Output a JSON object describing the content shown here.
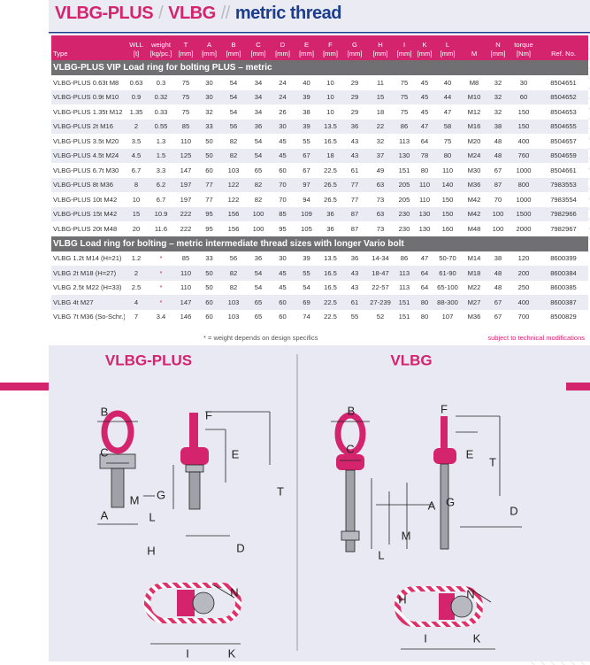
{
  "title": {
    "part1": "VLBG-PLUS",
    "part2": "VLBG",
    "part3": "metric thread"
  },
  "table": {
    "columns": [
      {
        "name": "Type"
      },
      {
        "name": "WLL",
        "unit": "[t]"
      },
      {
        "name": "weight",
        "unit": "[kg/pc.]"
      },
      {
        "name": "T",
        "unit": "[mm]"
      },
      {
        "name": "A",
        "unit": "[mm]"
      },
      {
        "name": "B",
        "unit": "[mm]"
      },
      {
        "name": "C",
        "unit": "[mm]"
      },
      {
        "name": "D",
        "unit": "[mm]"
      },
      {
        "name": "E",
        "unit": "[mm]"
      },
      {
        "name": "F",
        "unit": "[mm]"
      },
      {
        "name": "G",
        "unit": "[mm]"
      },
      {
        "name": "H",
        "unit": "[mm]"
      },
      {
        "name": "I",
        "unit": "[mm]"
      },
      {
        "name": "K",
        "unit": "[mm]"
      },
      {
        "name": "L",
        "unit": "[mm]"
      },
      {
        "name": "M"
      },
      {
        "name": "N",
        "unit": "[mm]"
      },
      {
        "name": "torque",
        "unit": "[Nm]"
      },
      {
        "name": "Ref. No."
      }
    ],
    "sections": [
      {
        "title": "VLBG-PLUS VIP Load ring for bolting PLUS – metric",
        "rows": [
          [
            "VLBG-PLUS 0.63t M8",
            "0.63",
            "0.3",
            "75",
            "30",
            "54",
            "34",
            "24",
            "40",
            "10",
            "29",
            "11",
            "75",
            "45",
            "40",
            "M8",
            "32",
            "30",
            "8504651"
          ],
          [
            "VLBG-PLUS 0.9t M10",
            "0.9",
            "0.32",
            "75",
            "30",
            "54",
            "34",
            "24",
            "39",
            "10",
            "29",
            "15",
            "75",
            "45",
            "44",
            "M10",
            "32",
            "60",
            "8504652"
          ],
          [
            "VLBG-PLUS 1.35t M12",
            "1.35",
            "0.33",
            "75",
            "32",
            "54",
            "34",
            "26",
            "38",
            "10",
            "29",
            "18",
            "75",
            "45",
            "47",
            "M12",
            "32",
            "150",
            "8504653"
          ],
          [
            "VLBG-PLUS 2t M16",
            "2",
            "0.55",
            "85",
            "33",
            "56",
            "36",
            "30",
            "39",
            "13.5",
            "36",
            "22",
            "86",
            "47",
            "58",
            "M16",
            "38",
            "150",
            "8504655"
          ],
          [
            "VLBG-PLUS 3.5t M20",
            "3.5",
            "1.3",
            "110",
            "50",
            "82",
            "54",
            "45",
            "55",
            "16.5",
            "43",
            "32",
            "113",
            "64",
            "75",
            "M20",
            "48",
            "400",
            "8504657"
          ],
          [
            "VLBG-PLUS 4.5t M24",
            "4.5",
            "1.5",
            "125",
            "50",
            "82",
            "54",
            "45",
            "67",
            "18",
            "43",
            "37",
            "130",
            "78",
            "80",
            "M24",
            "48",
            "760",
            "8504659"
          ],
          [
            "VLBG-PLUS 6.7t M30",
            "6.7",
            "3.3",
            "147",
            "60",
            "103",
            "65",
            "60",
            "67",
            "22.5",
            "61",
            "49",
            "151",
            "80",
            "110",
            "M30",
            "67",
            "1000",
            "8504661"
          ],
          [
            "VLBG-PLUS 8t M36",
            "8",
            "6.2",
            "197",
            "77",
            "122",
            "82",
            "70",
            "97",
            "26.5",
            "77",
            "63",
            "205",
            "110",
            "140",
            "M36",
            "87",
            "800",
            "7983553"
          ],
          [
            "VLBG-PLUS 10t M42",
            "10",
            "6.7",
            "197",
            "77",
            "122",
            "82",
            "70",
            "94",
            "26.5",
            "77",
            "73",
            "205",
            "110",
            "150",
            "M42",
            "70",
            "1000",
            "7983554"
          ],
          [
            "VLBG-PLUS 15t M42",
            "15",
            "10.9",
            "222",
            "95",
            "156",
            "100",
            "85",
            "109",
            "36",
            "87",
            "63",
            "230",
            "130",
            "150",
            "M42",
            "100",
            "1500",
            "7982966"
          ],
          [
            "VLBG-PLUS 20t M48",
            "20",
            "11.6",
            "222",
            "95",
            "156",
            "100",
            "95",
            "105",
            "36",
            "87",
            "73",
            "230",
            "130",
            "160",
            "M48",
            "100",
            "2000",
            "7982967"
          ]
        ]
      },
      {
        "title": "VLBG Load ring for bolting – metric intermediate thread sizes with longer Vario bolt",
        "rows": [
          [
            "VLBG 1.2t M14 (H=21)",
            "1.2",
            "*",
            "85",
            "33",
            "56",
            "36",
            "30",
            "39",
            "13.5",
            "36",
            "14-34",
            "86",
            "47",
            "50-70",
            "M14",
            "38",
            "120",
            "8600399"
          ],
          [
            "VLBG 2t M18 (H=27)",
            "2",
            "*",
            "110",
            "50",
            "82",
            "54",
            "45",
            "55",
            "16.5",
            "43",
            "18-47",
            "113",
            "64",
            "61-90",
            "M18",
            "48",
            "200",
            "8600384"
          ],
          [
            "VLBG 2.5t M22 (H=33)",
            "2.5",
            "*",
            "110",
            "50",
            "82",
            "54",
            "45",
            "54",
            "16.5",
            "43",
            "22-57",
            "113",
            "64",
            "65-100",
            "M22",
            "48",
            "250",
            "8600385"
          ],
          [
            "VLBG 4t M27",
            "4",
            "*",
            "147",
            "60",
            "103",
            "65",
            "60",
            "69",
            "22.5",
            "61",
            "27-239",
            "151",
            "80",
            "88-300",
            "M27",
            "67",
            "400",
            "8600387"
          ],
          [
            "VLBG 7t M36 (So-Schr.)",
            "7",
            "3.4",
            "146",
            "60",
            "103",
            "65",
            "60",
            "74",
            "22.5",
            "55",
            "52",
            "151",
            "80",
            "107",
            "M36",
            "67",
            "700",
            "8500829"
          ]
        ]
      }
    ],
    "footnote": "* = weight depends on design specifics",
    "note": "subject to technical modifications"
  },
  "diagrams": [
    {
      "title": "VLBG-PLUS",
      "labels": [
        "B",
        "C",
        "A",
        "M",
        "F",
        "E",
        "T",
        "L",
        "G",
        "H",
        "D",
        "N",
        "I",
        "K"
      ]
    },
    {
      "title": "VLBG",
      "labels": [
        "B",
        "C",
        "A",
        "M",
        "F",
        "E",
        "T",
        "G",
        "D",
        "L",
        "H",
        "N",
        "I",
        "K"
      ]
    }
  ]
}
